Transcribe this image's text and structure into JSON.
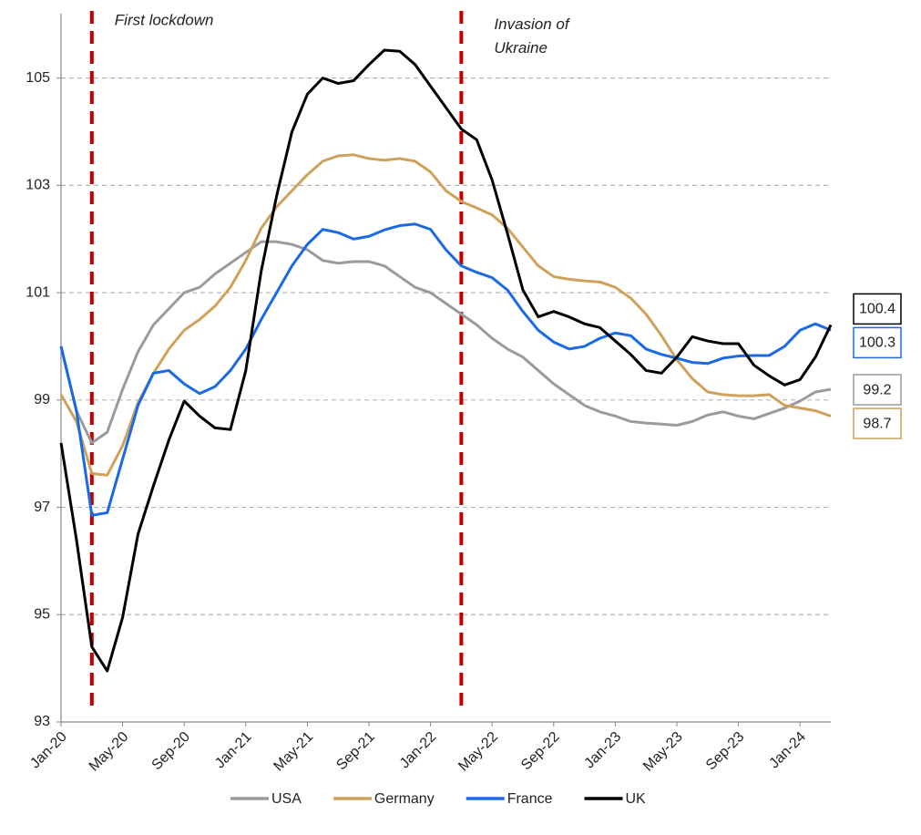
{
  "chart_data": {
    "type": "line",
    "categories": [
      "Jan-20",
      null,
      null,
      null,
      "May-20",
      null,
      null,
      null,
      "Sep-20",
      null,
      null,
      null,
      "Jan-21",
      null,
      null,
      null,
      "May-21",
      null,
      null,
      null,
      "Sep-21",
      null,
      null,
      null,
      "Jan-22",
      null,
      null,
      null,
      "May-22",
      null,
      null,
      null,
      "Sep-22",
      null,
      null,
      null,
      "Jan-23",
      null,
      null,
      null,
      "May-23",
      null,
      null,
      null,
      "Sep-23",
      null,
      null,
      null,
      "Jan-24",
      null,
      null
    ],
    "series": [
      {
        "name": "USA",
        "color": "#9b9b9b",
        "values": [
          100.0,
          98.8,
          98.2,
          98.4,
          99.2,
          99.9,
          100.4,
          100.7,
          101.0,
          101.1,
          101.35,
          101.55,
          101.75,
          101.95,
          101.95,
          101.9,
          101.8,
          101.6,
          101.55,
          101.58,
          101.58,
          101.5,
          101.3,
          101.1,
          101.0,
          100.8,
          100.6,
          100.4,
          100.15,
          99.95,
          99.8,
          99.55,
          99.3,
          99.1,
          98.9,
          98.78,
          98.7,
          98.6,
          98.57,
          98.55,
          98.53,
          98.6,
          98.72,
          98.78,
          98.7,
          98.65,
          98.75,
          98.85,
          98.98,
          99.15,
          99.2
        ]
      },
      {
        "name": "Germany",
        "color": "#cfa15a",
        "values": [
          99.1,
          98.6,
          97.63,
          97.6,
          98.15,
          98.95,
          99.5,
          99.95,
          100.3,
          100.5,
          100.75,
          101.1,
          101.6,
          102.2,
          102.6,
          102.9,
          103.2,
          103.45,
          103.55,
          103.57,
          103.5,
          103.47,
          103.5,
          103.45,
          103.25,
          102.9,
          102.7,
          102.58,
          102.45,
          102.2,
          101.85,
          101.5,
          101.3,
          101.25,
          101.22,
          101.2,
          101.1,
          100.9,
          100.6,
          100.2,
          99.75,
          99.4,
          99.15,
          99.1,
          99.08,
          99.08,
          99.1,
          98.9,
          98.85,
          98.8,
          98.7
        ]
      },
      {
        "name": "France",
        "color": "#1a6ae6",
        "values": [
          100.0,
          98.8,
          96.85,
          96.9,
          97.9,
          98.9,
          99.5,
          99.55,
          99.3,
          99.12,
          99.25,
          99.55,
          99.95,
          100.5,
          101.0,
          101.5,
          101.9,
          102.18,
          102.12,
          102.0,
          102.05,
          102.17,
          102.25,
          102.28,
          102.18,
          101.8,
          101.5,
          101.38,
          101.28,
          101.05,
          100.65,
          100.3,
          100.08,
          99.95,
          100.0,
          100.15,
          100.25,
          100.2,
          99.95,
          99.85,
          99.78,
          99.7,
          99.68,
          99.78,
          99.82,
          99.83,
          99.83,
          100.0,
          100.3,
          100.42,
          100.3
        ]
      },
      {
        "name": "UK",
        "color": "#000000",
        "values": [
          98.2,
          96.4,
          94.4,
          93.95,
          94.95,
          96.5,
          97.4,
          98.25,
          98.98,
          98.7,
          98.48,
          98.45,
          99.55,
          101.4,
          102.8,
          104.0,
          104.7,
          105.0,
          104.9,
          104.95,
          105.25,
          105.52,
          105.5,
          105.25,
          104.85,
          104.45,
          104.05,
          103.85,
          103.1,
          102.1,
          101.05,
          100.55,
          100.65,
          100.55,
          100.42,
          100.35,
          100.1,
          99.85,
          99.55,
          99.5,
          99.8,
          100.18,
          100.1,
          100.05,
          100.05,
          99.65,
          99.45,
          99.28,
          99.38,
          99.8,
          100.4
        ]
      }
    ],
    "ylim": [
      93,
      106.2
    ],
    "yticks": [
      93,
      95,
      97,
      99,
      101,
      103,
      105
    ],
    "grid": true,
    "annotations": [
      {
        "text": "First lockdown",
        "x": "Mar-20"
      },
      {
        "text": "Invasion of Ukraine",
        "x": "Mar-22"
      }
    ]
  }
}
